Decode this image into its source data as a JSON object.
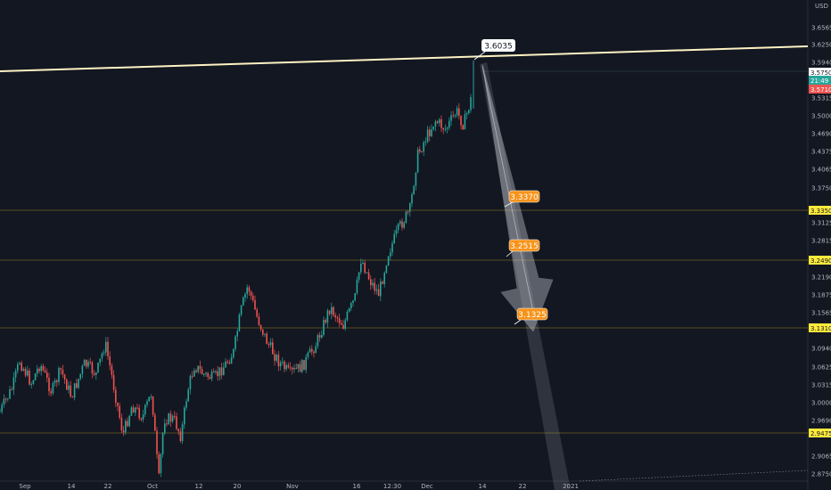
{
  "chart_data": {
    "type": "candlestick",
    "currency_label": "USD",
    "y_ticks": [
      "3.6565",
      "3.6250",
      "3.5940",
      "3.5315",
      "3.5000",
      "3.4690",
      "3.4375",
      "3.4065",
      "3.3750",
      "3.3125",
      "3.2815",
      "3.2190",
      "3.1875",
      "3.1565",
      "3.0940",
      "3.0625",
      "3.0315",
      "3.0000",
      "2.9690",
      "2.9065",
      "2.8750"
    ],
    "x_ticks": [
      "Sep",
      "14",
      "22",
      "Oct",
      "12",
      "20",
      "Nov",
      "16",
      "12:30",
      "Dec",
      "14",
      "22",
      "2021"
    ],
    "price_badges": [
      {
        "label": "3.5750",
        "color": "#ffffff"
      },
      {
        "label": "21:49",
        "color": "#26a69a"
      },
      {
        "label": "3.5710",
        "color": "#ef5350"
      }
    ],
    "levels": [
      {
        "label": "3.3350",
        "color": "#ffeb3b"
      },
      {
        "label": "3.2490",
        "color": "#ffeb3b"
      },
      {
        "label": "3.1310",
        "color": "#ffeb3b"
      },
      {
        "label": "2.9475",
        "color": "#ffeb3b"
      }
    ],
    "callouts": [
      {
        "label": "3.6035",
        "style": "white"
      },
      {
        "label": "3.3370",
        "style": "orange"
      },
      {
        "label": "3.2515",
        "style": "orange"
      },
      {
        "label": "3.1325",
        "style": "orange"
      }
    ],
    "colors": {
      "background": "#131722",
      "up": "#26a69a",
      "down": "#ef5350",
      "trendline": "#fff3c4",
      "accent": "#f7931a"
    }
  }
}
